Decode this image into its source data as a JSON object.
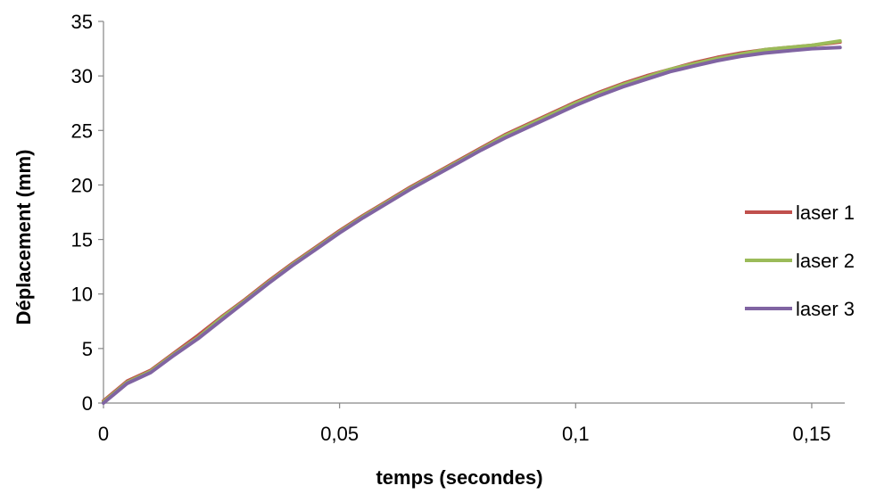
{
  "chart_data": {
    "type": "line",
    "title": "",
    "xlabel": "temps (secondes)",
    "ylabel": "Déplacement (mm)",
    "xlim": [
      0,
      0.157
    ],
    "ylim": [
      0,
      35
    ],
    "x_ticks": [
      0,
      0.05,
      0.1,
      0.15
    ],
    "x_tick_labels": [
      "0",
      "0,05",
      "0,1",
      "0,15"
    ],
    "y_ticks": [
      0,
      5,
      10,
      15,
      20,
      25,
      30,
      35
    ],
    "y_tick_labels": [
      "0",
      "5",
      "10",
      "15",
      "20",
      "25",
      "30",
      "35"
    ],
    "grid": false,
    "legend_position": "right",
    "x": [
      0,
      0.005,
      0.01,
      0.015,
      0.02,
      0.025,
      0.03,
      0.035,
      0.04,
      0.045,
      0.05,
      0.055,
      0.06,
      0.065,
      0.07,
      0.075,
      0.08,
      0.085,
      0.09,
      0.095,
      0.1,
      0.105,
      0.11,
      0.115,
      0.12,
      0.125,
      0.13,
      0.135,
      0.14,
      0.145,
      0.15,
      0.156
    ],
    "series": [
      {
        "name": "laser 1",
        "color": "#C0504D",
        "values": [
          0.2,
          2.0,
          3.0,
          4.6,
          6.2,
          7.9,
          9.5,
          11.2,
          12.8,
          14.3,
          15.8,
          17.2,
          18.5,
          19.8,
          21.0,
          22.2,
          23.4,
          24.6,
          25.6,
          26.6,
          27.6,
          28.5,
          29.3,
          30.0,
          30.6,
          31.2,
          31.7,
          32.1,
          32.4,
          32.6,
          32.8,
          33.1
        ]
      },
      {
        "name": "laser 2",
        "color": "#9BBB59",
        "values": [
          0.1,
          1.9,
          2.9,
          4.5,
          6.0,
          7.8,
          9.4,
          11.1,
          12.7,
          14.2,
          15.7,
          17.1,
          18.4,
          19.7,
          20.9,
          22.1,
          23.3,
          24.5,
          25.5,
          26.5,
          27.5,
          28.4,
          29.2,
          29.9,
          30.6,
          31.1,
          31.6,
          32.0,
          32.4,
          32.6,
          32.8,
          33.2
        ]
      },
      {
        "name": "laser 3",
        "color": "#8064A2",
        "values": [
          0.0,
          1.8,
          2.8,
          4.4,
          5.9,
          7.6,
          9.3,
          11.0,
          12.6,
          14.1,
          15.6,
          17.0,
          18.3,
          19.6,
          20.8,
          22.0,
          23.2,
          24.3,
          25.3,
          26.3,
          27.3,
          28.2,
          29.0,
          29.7,
          30.4,
          30.9,
          31.4,
          31.8,
          32.1,
          32.3,
          32.5,
          32.6
        ]
      }
    ]
  }
}
